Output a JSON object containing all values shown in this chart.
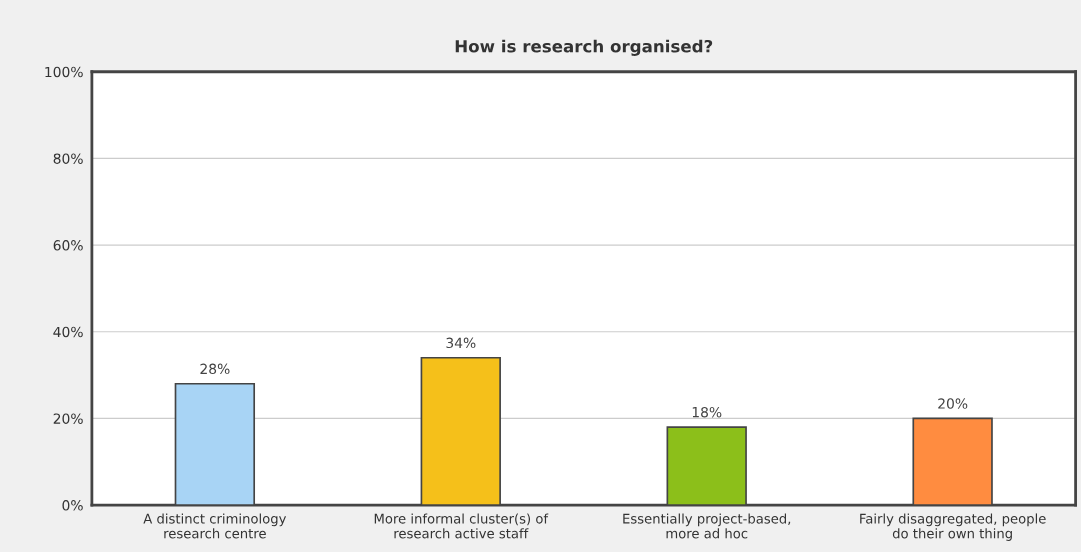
{
  "chart_data": {
    "type": "bar",
    "title": "How is research organised?",
    "categories": [
      "A distinct criminology\nresearch centre",
      "More informal cluster(s) of\nresearch active staff",
      "Essentially project-based,\nmore ad hoc",
      "Fairly disaggregated, people\ndo their own thing"
    ],
    "values": [
      28,
      34,
      18,
      20
    ],
    "colors": [
      "#a8d4f5",
      "#f5c01a",
      "#8cbf1a",
      "#ff8c40"
    ],
    "value_labels": [
      "28%",
      "34%",
      "18%",
      "20%"
    ],
    "ylim": [
      0,
      100
    ],
    "yticks": [
      {
        "value": 0,
        "label": "0%"
      },
      {
        "value": 20,
        "label": "20%"
      },
      {
        "value": 40,
        "label": "40%"
      },
      {
        "value": 60,
        "label": "60%"
      },
      {
        "value": 80,
        "label": "80%"
      },
      {
        "value": 100,
        "label": "100%"
      }
    ],
    "grid": "y"
  }
}
